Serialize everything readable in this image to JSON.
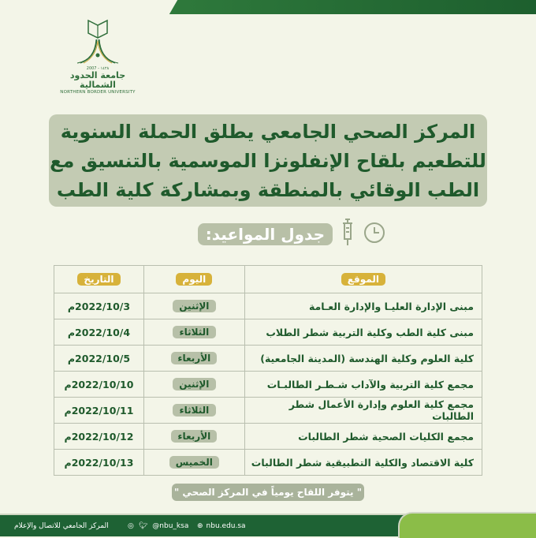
{
  "logo": {
    "arabic_name": "جامعة الحدود الشمالية",
    "english_name": "NORTHERN BORDER UNIVERSITY",
    "year": "2007 - ١٤٢٨"
  },
  "title_lines": [
    "المركز الصحي الجامعي يطلق الحملة السنوية",
    "للتطعيم بلقاح الإنفلونزا الموسمية بالتنسيق مع",
    "الطب الوقائي بالمنطقة وبمشاركة كلية الطب"
  ],
  "schedule_heading": "جدول المواعيد:",
  "icons": [
    "clock-icon",
    "syringe-icon"
  ],
  "table": {
    "headers": {
      "location": "الموقع",
      "day": "اليوم",
      "date": "التاريخ"
    },
    "rows": [
      {
        "location": "مبنى الإدارة العليـا والإدارة العـامة",
        "day": "الإثنين",
        "date": "2022/10/3م"
      },
      {
        "location": "مبنى كلية الطب وكلية التربية شطر الطلاب",
        "day": "الثلاثاء",
        "date": "2022/10/4م"
      },
      {
        "location": "كلية العلوم وكلية الهندسة (المدينة الجامعية)",
        "day": "الأربعاء",
        "date": "2022/10/5م"
      },
      {
        "location": "مجمع كلية التربية والآداب شـطـر الطالبـات",
        "day": "الإثنين",
        "date": "2022/10/10م"
      },
      {
        "location": "مجمع كلية العلوم وإدارة الأعمال شطر الطالبات",
        "day": "الثلاثاء",
        "date": "2022/10/11م"
      },
      {
        "location": "مجمع الكليات الصحية شطر الطالبات",
        "day": "الأربعاء",
        "date": "2022/10/12م"
      },
      {
        "location": "كلية الاقتصاد والكلية التطبيقية شطر الطالبات",
        "day": "الخميس",
        "date": "2022/10/13م"
      }
    ]
  },
  "note": "\" يتوفر اللقاح يومياً في المركز الصحي \"",
  "footer": {
    "org": "المركز الجامعي للاتصال والإعلام",
    "handle": "@nbu_ksa",
    "website": "nbu.edu.sa"
  },
  "colors": {
    "primary_green": "#1e6234",
    "gold": "#d7b23a",
    "background": "#f3f5e8",
    "box": "#c3cbb3"
  }
}
